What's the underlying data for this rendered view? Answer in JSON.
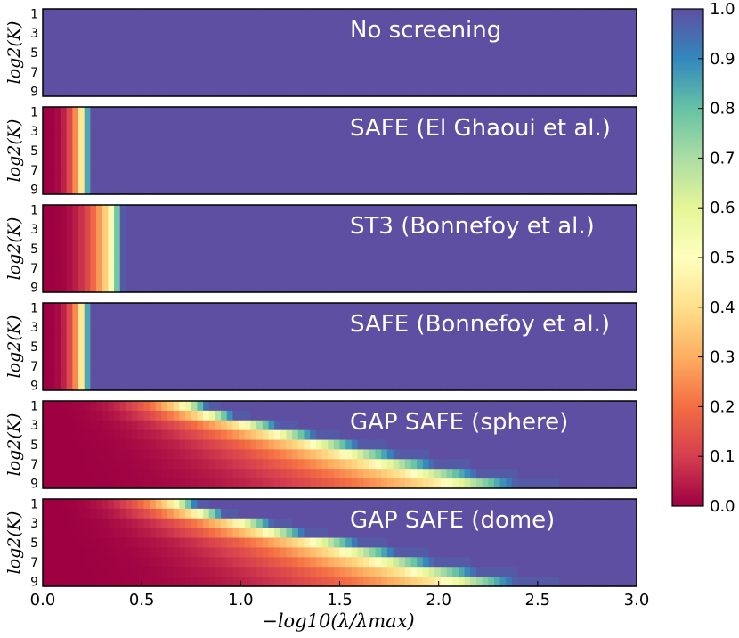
{
  "chart_data": {
    "type": "heatmap",
    "xlabel": "−log10(λ/λmax)",
    "ylabel": "log2(K)",
    "xlim": [
      0.0,
      3.0
    ],
    "x_ticks": [
      "0.0",
      "0.5",
      "1.0",
      "1.5",
      "2.0",
      "2.5",
      "3.0"
    ],
    "y_ticks": [
      "1",
      "3",
      "5",
      "7",
      "9"
    ],
    "n_lambda": 100,
    "n_k": 9,
    "colormap": "Spectral",
    "colorbar": {
      "min": 0.0,
      "max": 1.0,
      "ticks": [
        "0.0",
        "0.1",
        "0.2",
        "0.3",
        "0.4",
        "0.5",
        "0.6",
        "0.7",
        "0.8",
        "0.9",
        "1.0"
      ]
    },
    "panels": [
      {
        "title": "No screening",
        "transition_x_by_logK": [
          0.0,
          0.0,
          0.0,
          0.0,
          0.0,
          0.0,
          0.0,
          0.0,
          0.0
        ]
      },
      {
        "title": "SAFE (El Ghaoui et al.)",
        "transition_x_by_logK": [
          0.24,
          0.24,
          0.24,
          0.24,
          0.24,
          0.24,
          0.24,
          0.24,
          0.24
        ]
      },
      {
        "title": "ST3 (Bonnefoy et al.)",
        "transition_x_by_logK": [
          0.42,
          0.42,
          0.42,
          0.42,
          0.42,
          0.42,
          0.42,
          0.42,
          0.42
        ]
      },
      {
        "title": "SAFE (Bonnefoy et al.)",
        "transition_x_by_logK": [
          0.24,
          0.24,
          0.24,
          0.24,
          0.24,
          0.24,
          0.24,
          0.24,
          0.24
        ]
      },
      {
        "title": "GAP SAFE (sphere)",
        "transition_x_by_logK": [
          0.9,
          1.05,
          1.3,
          1.5,
          1.75,
          1.95,
          2.15,
          2.4,
          2.6
        ]
      },
      {
        "title": "GAP SAFE (dome)",
        "transition_x_by_logK": [
          0.85,
          1.0,
          1.25,
          1.45,
          1.75,
          1.95,
          2.15,
          2.4,
          2.6
        ]
      }
    ]
  }
}
